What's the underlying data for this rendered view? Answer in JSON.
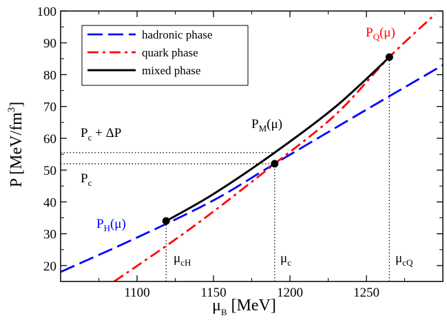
{
  "chart_data": {
    "type": "line",
    "xlabel": {
      "main": "μ",
      "sub": "B",
      "unit": " [MeV]"
    },
    "ylabel": {
      "main": "P [MeV/fm",
      "sup": "3",
      "end": "]"
    },
    "xlim": [
      1050,
      1300
    ],
    "ylim": [
      15,
      100
    ],
    "xticks": [
      1100,
      1150,
      1200,
      1250
    ],
    "yticks": [
      20,
      30,
      40,
      50,
      60,
      70,
      80,
      90,
      100
    ],
    "grid": false,
    "legend_position": "top-left",
    "series": [
      {
        "name": "hadronic phase",
        "color": "#0000ff",
        "dash": "dashed",
        "x": [
          1050,
          1100,
          1150,
          1190,
          1250,
          1300
        ],
        "y": [
          18,
          28.8,
          40.5,
          52,
          69,
          83
        ]
      },
      {
        "name": "quark phase",
        "color": "#ff0000",
        "dash": "dashdot",
        "x": [
          1085,
          1120,
          1150,
          1190,
          1230,
          1265,
          1295
        ],
        "y": [
          15,
          26.5,
          37,
          52,
          67.5,
          85.5,
          99
        ]
      },
      {
        "name": "mixed phase",
        "color": "#000000",
        "dash": "solid",
        "x": [
          1119,
          1150,
          1190,
          1230,
          1265
        ],
        "y": [
          34,
          42.5,
          55.5,
          70,
          85.5
        ]
      }
    ],
    "points": [
      {
        "x": 1119,
        "y": 34
      },
      {
        "x": 1190,
        "y": 52
      },
      {
        "x": 1265,
        "y": 85.5
      }
    ],
    "reference_lines": [
      {
        "kind": "h",
        "y": 55.5,
        "x_from": 1050,
        "x_to": 1190
      },
      {
        "kind": "h",
        "y": 52,
        "x_from": 1050,
        "x_to": 1190
      },
      {
        "kind": "v",
        "x": 1119,
        "y_from": 15,
        "y_to": 34
      },
      {
        "kind": "v",
        "x": 1190,
        "y_from": 15,
        "y_to": 52
      },
      {
        "kind": "v",
        "x": 1265,
        "y_from": 15,
        "y_to": 85.5
      }
    ],
    "annotations": [
      {
        "id": "pq",
        "main": "P",
        "sub": "Q",
        "tail": "(μ)",
        "color": "#ff0000"
      },
      {
        "id": "pm",
        "main": "P",
        "sub": "M",
        "tail": "(μ)",
        "color": "#000000"
      },
      {
        "id": "ph",
        "main": "P",
        "sub": "H",
        "tail": "(μ)",
        "color": "#0000ff"
      },
      {
        "id": "pcdp",
        "main": "P",
        "sub": "c",
        "tail": " + ΔP",
        "color": "#000000"
      },
      {
        "id": "pc",
        "main": "P",
        "sub": "c",
        "tail": "",
        "color": "#000000"
      },
      {
        "id": "mch",
        "main": "μ",
        "sub": "cH",
        "tail": "",
        "color": "#000000"
      },
      {
        "id": "mc",
        "main": "μ",
        "sub": "c",
        "tail": "",
        "color": "#000000"
      },
      {
        "id": "mcq",
        "main": "μ",
        "sub": "cQ",
        "tail": "",
        "color": "#000000"
      }
    ]
  }
}
